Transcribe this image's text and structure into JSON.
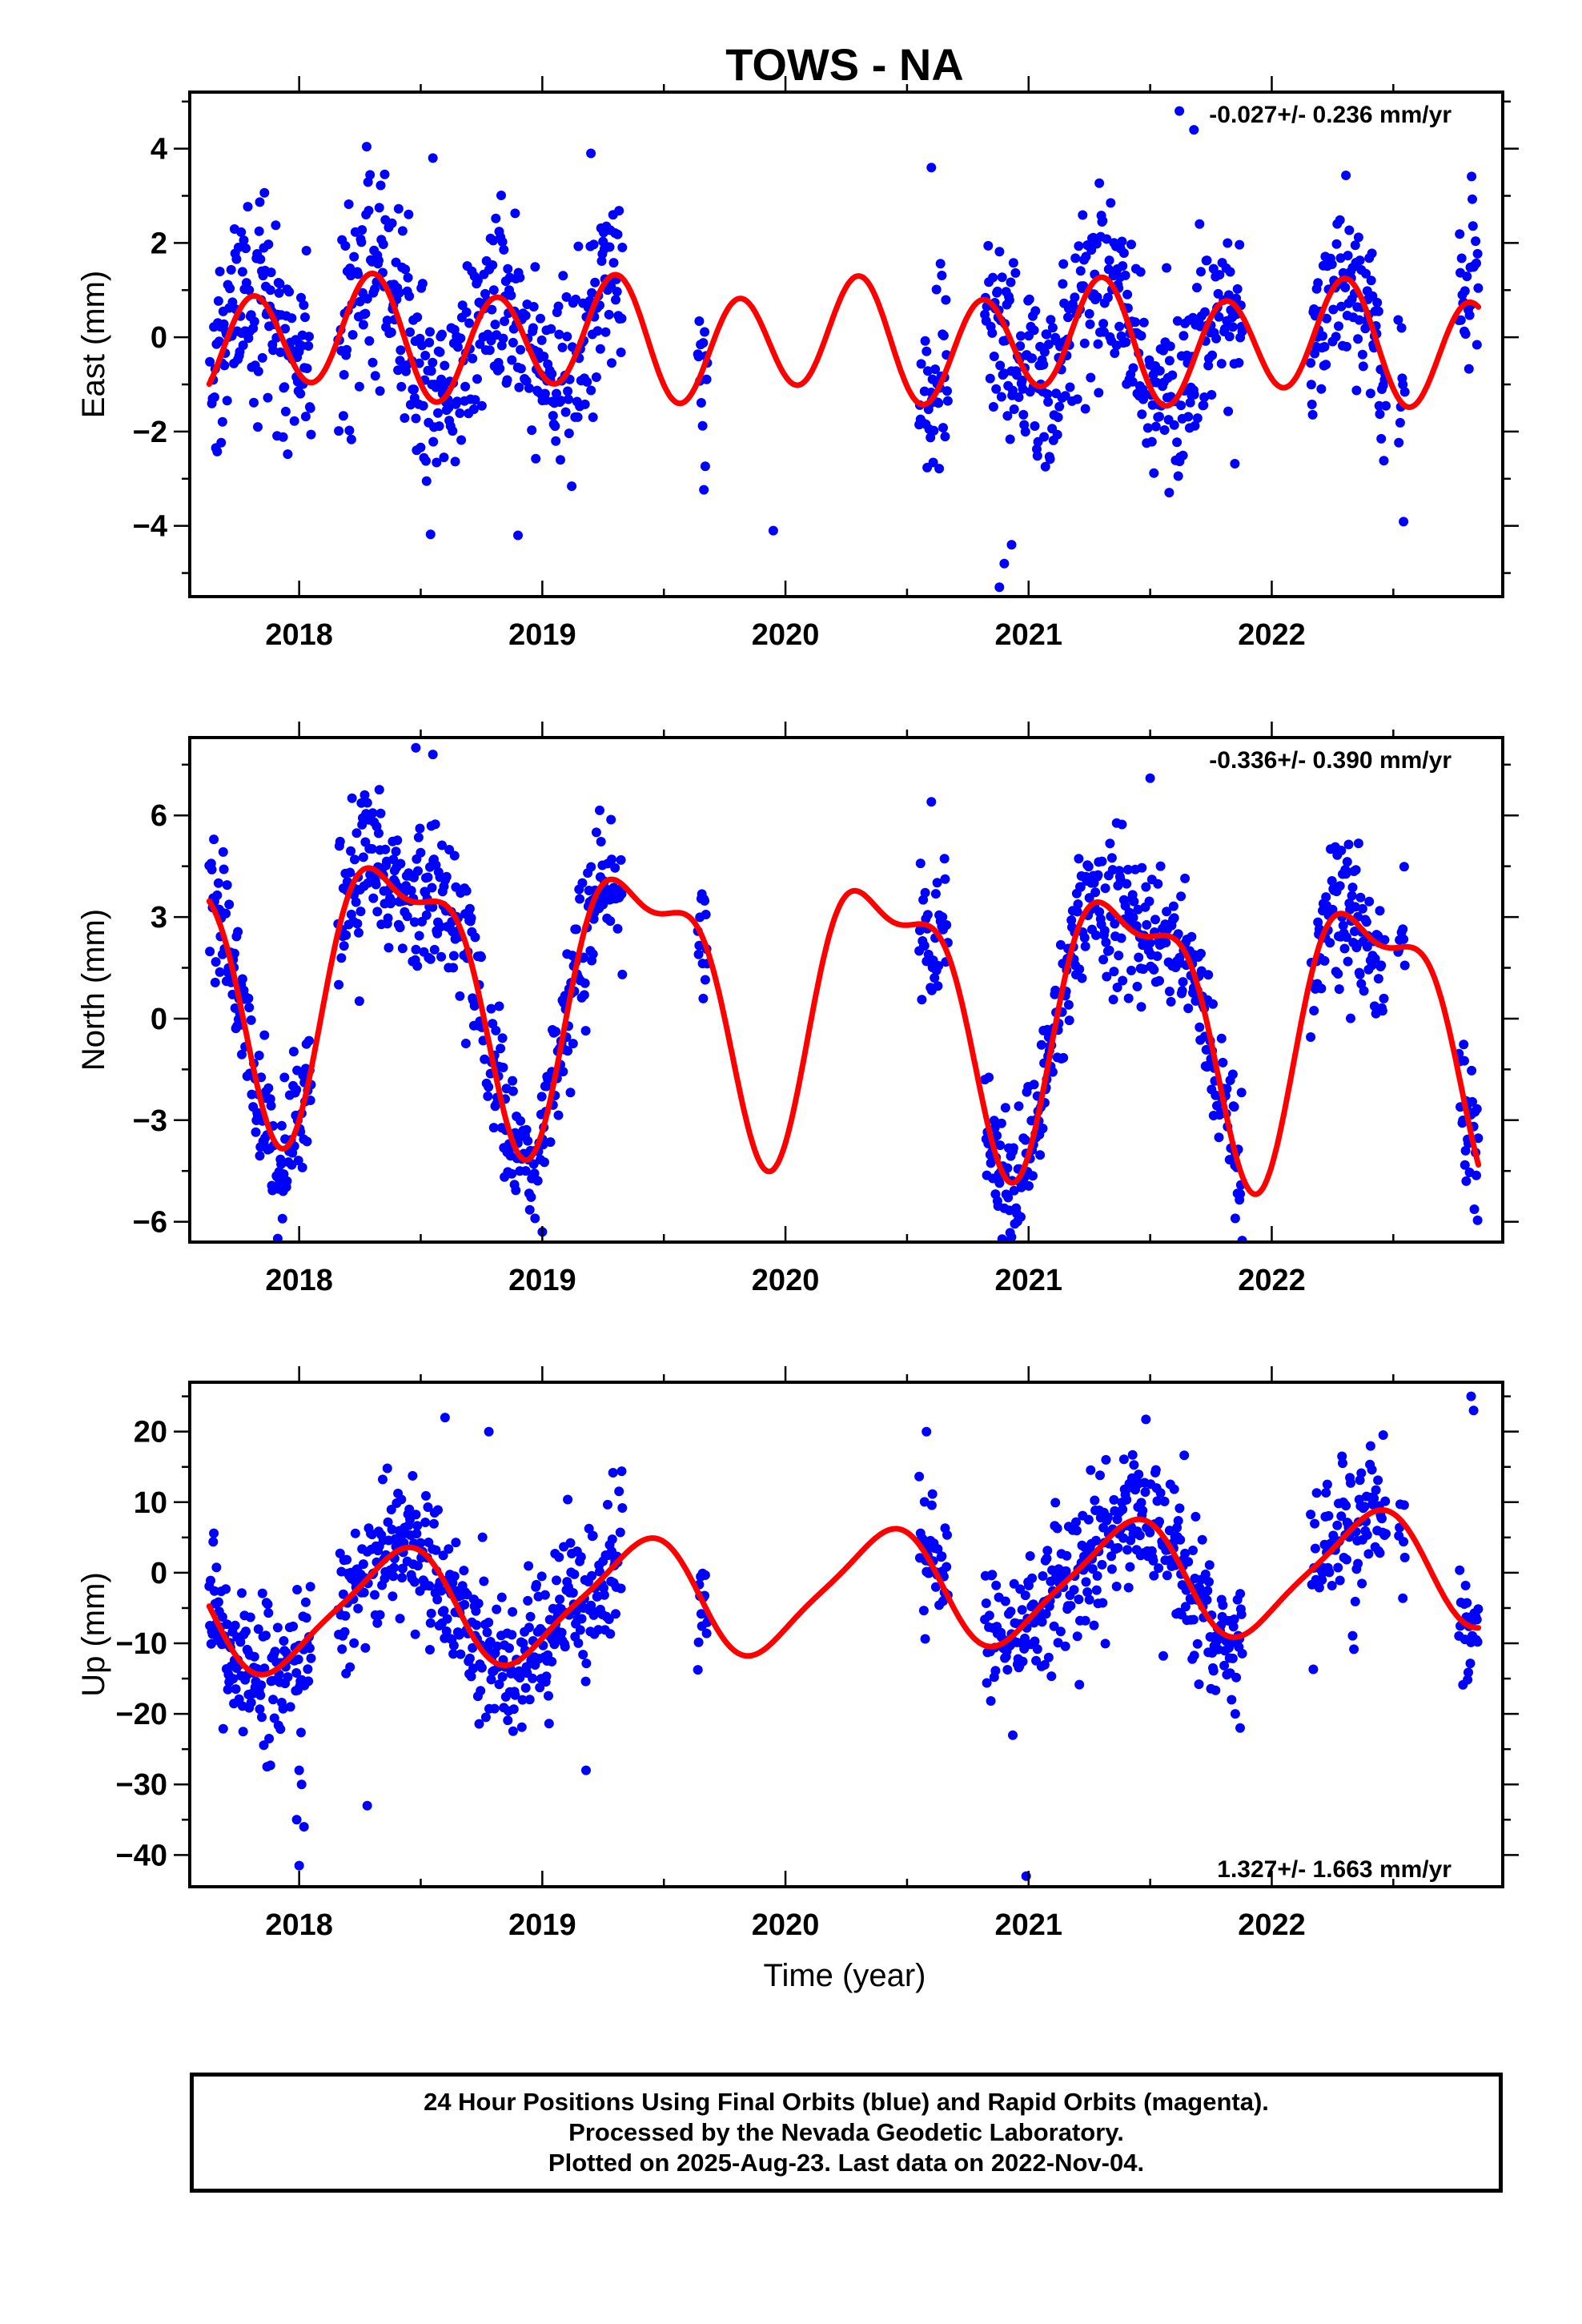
{
  "chart_data": {
    "type": "scatter",
    "title": "TOWS - NA",
    "xlabel": "Time (year)",
    "xlim": [
      2017.55,
      2022.95
    ],
    "xticks": [
      2018,
      2019,
      2020,
      2021,
      2022
    ],
    "xtick_labels": [
      "2018",
      "2019",
      "2020",
      "2021",
      "2022"
    ],
    "point_color": "#0000ff",
    "fit_color": "#ff0000",
    "data_segments": [
      [
        2017.63,
        2018.05
      ],
      [
        2018.16,
        2019.33
      ],
      [
        2019.64,
        2019.68
      ],
      [
        2020.55,
        2020.67
      ],
      [
        2020.82,
        2021.58
      ],
      [
        2021.58,
        2021.88
      ],
      [
        2022.16,
        2022.47
      ],
      [
        2022.52,
        2022.55
      ],
      [
        2022.77,
        2022.85
      ]
    ],
    "panels": [
      {
        "name": "east",
        "ylabel": "East (mm)",
        "ylim": [
          -5.5,
          5.2
        ],
        "yticks": [
          -4,
          -2,
          0,
          2,
          4
        ],
        "ytick_labels": [
          "−4",
          "−2",
          "0",
          "2",
          "4"
        ],
        "rate_text": "-0.027+/- 0.236 mm/yr",
        "rate_position": "top-right",
        "fit": {
          "offset": -0.02,
          "trend": -0.027,
          "annual_cos": 0.1,
          "annual_sin": 0.3,
          "semiannual_cos": -0.85,
          "semiannual_sin": -0.75
        },
        "scatter_sd": 1.0,
        "outliers": [
          [
            2020.88,
            -5.3
          ],
          [
            2020.9,
            -4.8
          ],
          [
            2020.93,
            -4.4
          ],
          [
            2019.95,
            -4.1
          ],
          [
            2018.9,
            -4.2
          ],
          [
            2019.2,
            3.9
          ],
          [
            2021.62,
            4.8
          ],
          [
            2021.68,
            4.4
          ],
          [
            2018.55,
            3.8
          ],
          [
            2020.6,
            3.6
          ]
        ]
      },
      {
        "name": "north",
        "ylabel": "North (mm)",
        "ylim": [
          -6.6,
          8.3
        ],
        "yticks": [
          -6,
          -3,
          0,
          3,
          6
        ],
        "ytick_labels": [
          "−6",
          "−3",
          "0",
          "3",
          "6"
        ],
        "rate_text": "-0.336+/- 0.390 mm/yr",
        "rate_position": "top-right",
        "fit": {
          "offset": 1.4,
          "trend": -0.336,
          "annual_cos": -3.3,
          "annual_sin": 1.9,
          "semiannual_cos": -1.1,
          "semiannual_sin": 1.0
        },
        "scatter_sd": 1.05,
        "outliers": [
          [
            2018.48,
            8.0
          ],
          [
            2018.55,
            7.8
          ],
          [
            2021.5,
            7.1
          ],
          [
            2019.0,
            -6.3
          ],
          [
            2018.97,
            -5.9
          ],
          [
            2021.85,
            -5.9
          ],
          [
            2020.9,
            -5.6
          ],
          [
            2017.95,
            -4.8
          ],
          [
            2022.8,
            -4.8
          ],
          [
            2020.6,
            6.4
          ]
        ]
      },
      {
        "name": "up",
        "ylabel": "Up (mm)",
        "ylim": [
          -44.5,
          27
        ],
        "yticks": [
          -40,
          -30,
          -20,
          -10,
          0,
          10,
          20
        ],
        "ytick_labels": [
          "−40",
          "−30",
          "−20",
          "−10",
          "0",
          "10",
          "20"
        ],
        "rate_text": "1.327+/- 1.663 mm/yr",
        "rate_position": "bottom-right",
        "fit": {
          "offset": -5.6,
          "trend": 1.327,
          "annual_cos": -6.5,
          "annual_sin": 4.8,
          "semiannual_cos": 1.5,
          "semiannual_sin": 0.5
        },
        "scatter_sd": 5.0,
        "outliers": [
          [
            2018.0,
            -41.5
          ],
          [
            2018.02,
            -36
          ],
          [
            2017.99,
            -35
          ],
          [
            2018.01,
            -30
          ],
          [
            2018.0,
            -28
          ],
          [
            2020.99,
            -43
          ],
          [
            2018.28,
            -33
          ],
          [
            2021.85,
            -20
          ],
          [
            2021.87,
            -22
          ],
          [
            2019.18,
            -28
          ],
          [
            2022.82,
            25
          ],
          [
            2022.83,
            23
          ],
          [
            2018.6,
            22
          ],
          [
            2018.78,
            20
          ],
          [
            2020.58,
            20
          ]
        ]
      }
    ]
  },
  "footnote": {
    "line1": "24 Hour Positions Using Final Orbits (blue) and Rapid Orbits (magenta).",
    "line2": "Processed by the Nevada Geodetic Laboratory.",
    "line3": "Plotted on 2025-Aug-23. Last data on 2022-Nov-04."
  }
}
